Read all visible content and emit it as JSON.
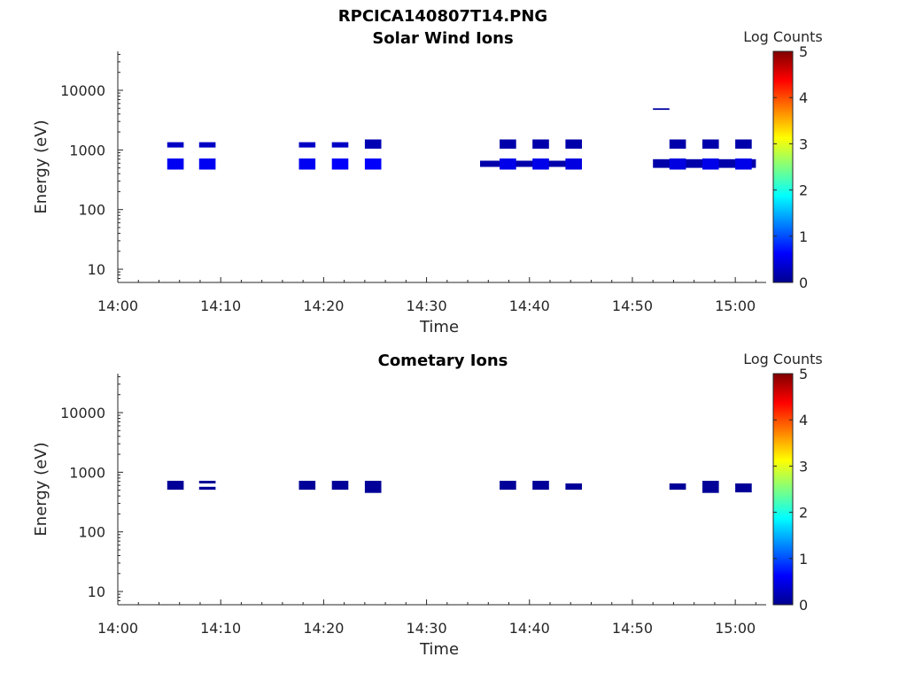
{
  "figure_title": "RPCICA140807T14.PNG",
  "chart_data": [
    {
      "type": "heatmap",
      "title": "Solar Wind Ions",
      "xlabel": "Time",
      "ylabel": "Energy (eV)",
      "x_range": [
        "14:00",
        "15:03"
      ],
      "y_scale": "log",
      "ylim": [
        6,
        45000
      ],
      "x_ticks": [
        "14:00",
        "14:10",
        "14:20",
        "14:30",
        "14:40",
        "14:50",
        "15:00"
      ],
      "y_ticks": [
        "10",
        "100",
        "1000",
        "10000"
      ],
      "colorbar": {
        "label": "Log Counts",
        "range": [
          0,
          5
        ],
        "ticks": [
          "0",
          "1",
          "2",
          "3",
          "4",
          "5"
        ],
        "colormap": "jet"
      },
      "blocks": [
        {
          "t_start": "14:04.8",
          "t_end": "14:06.4",
          "e_low": 1100,
          "e_high": 1350,
          "log_counts": 0.3
        },
        {
          "t_start": "14:04.8",
          "t_end": "14:06.4",
          "e_low": 470,
          "e_high": 720,
          "log_counts": 0.55
        },
        {
          "t_start": "14:07.9",
          "t_end": "14:09.5",
          "e_low": 1100,
          "e_high": 1350,
          "log_counts": 0.3
        },
        {
          "t_start": "14:07.9",
          "t_end": "14:09.5",
          "e_low": 470,
          "e_high": 720,
          "log_counts": 0.55
        },
        {
          "t_start": "14:17.6",
          "t_end": "14:19.2",
          "e_low": 1100,
          "e_high": 1350,
          "log_counts": 0.3
        },
        {
          "t_start": "14:17.6",
          "t_end": "14:19.2",
          "e_low": 470,
          "e_high": 720,
          "log_counts": 0.55
        },
        {
          "t_start": "14:20.8",
          "t_end": "14:22.4",
          "e_low": 1100,
          "e_high": 1350,
          "log_counts": 0.3
        },
        {
          "t_start": "14:20.8",
          "t_end": "14:22.4",
          "e_low": 470,
          "e_high": 720,
          "log_counts": 0.6
        },
        {
          "t_start": "14:24.0",
          "t_end": "14:25.6",
          "e_low": 1050,
          "e_high": 1500,
          "log_counts": 0.2
        },
        {
          "t_start": "14:24.0",
          "t_end": "14:25.6",
          "e_low": 470,
          "e_high": 720,
          "log_counts": 0.6
        },
        {
          "t_start": "14:35.2",
          "t_end": "14:44.4",
          "e_low": 520,
          "e_high": 660,
          "log_counts": 0.15
        },
        {
          "t_start": "14:37.1",
          "t_end": "14:38.7",
          "e_low": 1050,
          "e_high": 1500,
          "log_counts": 0.15
        },
        {
          "t_start": "14:37.1",
          "t_end": "14:38.7",
          "e_low": 470,
          "e_high": 720,
          "log_counts": 0.5
        },
        {
          "t_start": "14:40.3",
          "t_end": "14:41.9",
          "e_low": 1050,
          "e_high": 1500,
          "log_counts": 0.15
        },
        {
          "t_start": "14:40.3",
          "t_end": "14:41.9",
          "e_low": 470,
          "e_high": 720,
          "log_counts": 0.5
        },
        {
          "t_start": "14:43.5",
          "t_end": "14:45.1",
          "e_low": 1050,
          "e_high": 1500,
          "log_counts": 0.15
        },
        {
          "t_start": "14:43.5",
          "t_end": "14:45.1",
          "e_low": 470,
          "e_high": 720,
          "log_counts": 0.45
        },
        {
          "t_start": "14:52.0",
          "t_end": "14:53.6",
          "e_low": 4700,
          "e_high": 5000,
          "log_counts": 0.1
        },
        {
          "t_start": "14:52.0",
          "t_end": "15:02.0",
          "e_low": 500,
          "e_high": 700,
          "log_counts": 0.15
        },
        {
          "t_start": "14:53.6",
          "t_end": "14:55.2",
          "e_low": 1050,
          "e_high": 1500,
          "log_counts": 0.15
        },
        {
          "t_start": "14:53.6",
          "t_end": "14:55.2",
          "e_low": 470,
          "e_high": 720,
          "log_counts": 0.45
        },
        {
          "t_start": "14:56.8",
          "t_end": "14:58.4",
          "e_low": 1050,
          "e_high": 1500,
          "log_counts": 0.15
        },
        {
          "t_start": "14:56.8",
          "t_end": "14:58.4",
          "e_low": 470,
          "e_high": 720,
          "log_counts": 0.5
        },
        {
          "t_start": "15:00.0",
          "t_end": "15:01.6",
          "e_low": 1050,
          "e_high": 1500,
          "log_counts": 0.15
        },
        {
          "t_start": "15:00.0",
          "t_end": "15:01.6",
          "e_low": 470,
          "e_high": 720,
          "log_counts": 0.5
        }
      ]
    },
    {
      "type": "heatmap",
      "title": "Cometary Ions",
      "xlabel": "Time",
      "ylabel": "Energy (eV)",
      "x_range": [
        "14:00",
        "15:03"
      ],
      "y_scale": "log",
      "ylim": [
        6,
        45000
      ],
      "x_ticks": [
        "14:00",
        "14:10",
        "14:20",
        "14:30",
        "14:40",
        "14:50",
        "15:00"
      ],
      "y_ticks": [
        "10",
        "100",
        "1000",
        "10000"
      ],
      "colorbar": {
        "label": "Log Counts",
        "range": [
          0,
          5
        ],
        "ticks": [
          "0",
          "1",
          "2",
          "3",
          "4",
          "5"
        ],
        "colormap": "jet"
      },
      "blocks": [
        {
          "t_start": "14:04.8",
          "t_end": "14:06.4",
          "e_low": 510,
          "e_high": 720,
          "log_counts": 0.05
        },
        {
          "t_start": "14:07.9",
          "t_end": "14:09.5",
          "e_low": 650,
          "e_high": 720,
          "log_counts": 0.05
        },
        {
          "t_start": "14:07.9",
          "t_end": "14:09.5",
          "e_low": 510,
          "e_high": 570,
          "log_counts": 0.05
        },
        {
          "t_start": "14:17.6",
          "t_end": "14:19.2",
          "e_low": 510,
          "e_high": 720,
          "log_counts": 0.05
        },
        {
          "t_start": "14:20.8",
          "t_end": "14:22.4",
          "e_low": 510,
          "e_high": 720,
          "log_counts": 0.05
        },
        {
          "t_start": "14:24.0",
          "t_end": "14:25.6",
          "e_low": 450,
          "e_high": 720,
          "log_counts": 0.05
        },
        {
          "t_start": "14:37.1",
          "t_end": "14:38.7",
          "e_low": 510,
          "e_high": 720,
          "log_counts": 0.05
        },
        {
          "t_start": "14:40.3",
          "t_end": "14:41.9",
          "e_low": 510,
          "e_high": 720,
          "log_counts": 0.05
        },
        {
          "t_start": "14:43.5",
          "t_end": "14:45.1",
          "e_low": 510,
          "e_high": 650,
          "log_counts": 0.05
        },
        {
          "t_start": "14:53.6",
          "t_end": "14:55.2",
          "e_low": 510,
          "e_high": 650,
          "log_counts": 0.05
        },
        {
          "t_start": "14:56.8",
          "t_end": "14:58.4",
          "e_low": 450,
          "e_high": 720,
          "log_counts": 0.05
        },
        {
          "t_start": "15:00.0",
          "t_end": "15:01.6",
          "e_low": 460,
          "e_high": 650,
          "log_counts": 0.05
        }
      ]
    }
  ]
}
